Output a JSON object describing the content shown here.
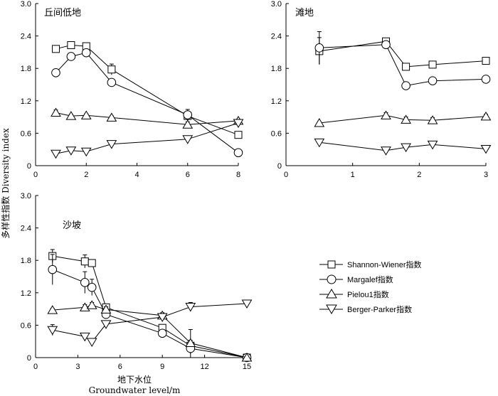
{
  "figure": {
    "ylabel": "多样性指数 Diversity index",
    "xlabel_cn": "地下水位",
    "xlabel_en": "Groundwater level/m"
  },
  "legend": [
    {
      "marker": "square",
      "label": "Shannon-Wiener指数"
    },
    {
      "marker": "circle",
      "label": "Margalef指数"
    },
    {
      "marker": "triangle-up",
      "label": "Pielou1指数"
    },
    {
      "marker": "triangle-down",
      "label": "Berger-Parker指数"
    }
  ],
  "chart_data": [
    {
      "type": "line",
      "title": "丘间低地",
      "xlim": [
        0,
        8
      ],
      "xticks": [
        0,
        2,
        4,
        6,
        8
      ],
      "ylim": [
        0,
        3.0
      ],
      "yticks": [
        "0",
        "0.6",
        "1.2",
        "1.8",
        "2.4",
        "3.0"
      ],
      "x": [
        0.8,
        1.4,
        2.0,
        3.0,
        6.0,
        8.0
      ],
      "series": [
        {
          "name": "Shannon-Wiener指数",
          "marker": "square",
          "values": [
            2.16,
            2.23,
            2.21,
            1.78,
            0.92,
            0.57
          ],
          "errors": [
            0.05,
            0.04,
            0.04,
            0.1,
            0.08,
            0.04
          ]
        },
        {
          "name": "Margalef指数",
          "marker": "circle",
          "values": [
            1.72,
            2.02,
            2.09,
            1.54,
            0.94,
            0.24
          ],
          "errors": [
            0.0,
            0.0,
            0.05,
            0.0,
            0.1,
            0.05
          ]
        },
        {
          "name": "Pielou1指数",
          "marker": "triangle-up",
          "values": [
            0.98,
            0.92,
            0.93,
            0.89,
            0.76,
            0.83
          ],
          "errors": [
            0.05,
            0.03,
            0.03,
            0.03,
            0.05,
            0.03
          ]
        },
        {
          "name": "Berger-Parker指数",
          "marker": "triangle-down",
          "values": [
            0.22,
            0.28,
            0.26,
            0.4,
            0.49,
            0.79
          ],
          "errors": [
            0.02,
            0.03,
            0.02,
            0.03,
            0.03,
            0.03
          ]
        }
      ]
    },
    {
      "type": "line",
      "title": "滩地",
      "xlim": [
        0,
        3
      ],
      "xticks": [
        0,
        1,
        2,
        3
      ],
      "ylim": [
        0,
        3.0
      ],
      "yticks": [
        "0",
        "0.6",
        "1.2",
        "1.8",
        "2.4",
        "3.0"
      ],
      "x": [
        0.5,
        1.5,
        1.8,
        2.2,
        3.0
      ],
      "series": [
        {
          "name": "Shannon-Wiener指数",
          "marker": "square",
          "values": [
            2.12,
            2.3,
            1.83,
            1.87,
            1.94
          ],
          "errors": [
            0.25,
            0.04,
            0.05,
            0.05,
            0.05
          ]
        },
        {
          "name": "Margalef指数",
          "marker": "circle",
          "values": [
            2.18,
            2.24,
            1.48,
            1.57,
            1.6
          ],
          "errors": [
            0.3,
            0.05,
            0.0,
            0.0,
            0.04
          ]
        },
        {
          "name": "Pielou1指数",
          "marker": "triangle-up",
          "values": [
            0.79,
            0.93,
            0.85,
            0.84,
            0.91
          ],
          "errors": [
            0.02,
            0.05,
            0.05,
            0.05,
            0.04
          ]
        },
        {
          "name": "Berger-Parker指数",
          "marker": "triangle-down",
          "values": [
            0.43,
            0.28,
            0.34,
            0.39,
            0.31
          ],
          "errors": [
            0.03,
            0.03,
            0.03,
            0.04,
            0.03
          ]
        }
      ]
    },
    {
      "type": "line",
      "title": "沙坡",
      "xlim": [
        0,
        15
      ],
      "xticks": [
        0,
        3,
        6,
        9,
        12,
        15
      ],
      "ylim": [
        0,
        3.0
      ],
      "yticks": [
        "0",
        "0.6",
        "1.2",
        "1.8",
        "2.4",
        "3.0"
      ],
      "x": [
        1.2,
        3.5,
        4.0,
        5.0,
        9.0,
        11.0,
        15.0
      ],
      "series": [
        {
          "name": "Shannon-Wiener指数",
          "marker": "square",
          "values": [
            1.88,
            1.78,
            1.75,
            0.93,
            0.55,
            0.22,
            0.0
          ],
          "errors": [
            0.12,
            0.12,
            0.05,
            0.05,
            0.05,
            0.3,
            0.02
          ]
        },
        {
          "name": "Margalef指数",
          "marker": "circle",
          "values": [
            1.63,
            1.39,
            1.3,
            0.8,
            0.45,
            0.17,
            0.0
          ],
          "errors": [
            0.28,
            0.2,
            0.15,
            0.05,
            0.05,
            0.1,
            0.02
          ]
        },
        {
          "name": "Pielou1指数",
          "marker": "triangle-up",
          "values": [
            0.88,
            0.93,
            0.97,
            0.89,
            0.78,
            0.27,
            0.0
          ],
          "errors": [
            0.03,
            0.05,
            0.05,
            0.05,
            0.05,
            0.05,
            0.02
          ]
        },
        {
          "name": "Berger-Parker指数",
          "marker": "triangle-down",
          "values": [
            0.51,
            0.39,
            0.29,
            0.62,
            0.75,
            0.94,
            1.0
          ],
          "errors": [
            0.1,
            0.05,
            0.05,
            0.03,
            0.05,
            0.08,
            0.02
          ]
        }
      ]
    }
  ]
}
